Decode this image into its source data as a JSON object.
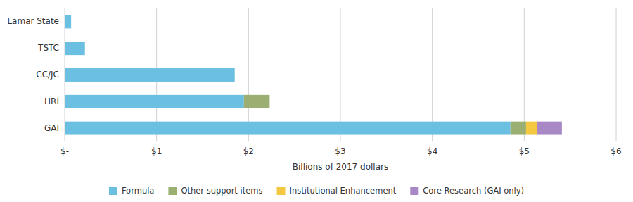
{
  "chart_data": {
    "type": "bar",
    "orientation": "horizontal",
    "stacked": true,
    "categories": [
      "GAI",
      "HRI",
      "CC/JC",
      "TSTC",
      "Lamar State"
    ],
    "series": [
      {
        "name": "Formula",
        "color": "#6BBFE0",
        "values": [
          4.85,
          1.95,
          1.85,
          0.22,
          0.07
        ]
      },
      {
        "name": "Other support items",
        "color": "#9BAF72",
        "values": [
          0.17,
          0.28,
          0.0,
          0.0,
          0.0
        ]
      },
      {
        "name": "Institutional Enhancement",
        "color": "#F5C842",
        "values": [
          0.12,
          0.0,
          0.0,
          0.0,
          0.0
        ]
      },
      {
        "name": "Core Research (GAI only)",
        "color": "#A989C5",
        "values": [
          0.27,
          0.0,
          0.0,
          0.0,
          0.0
        ]
      }
    ],
    "xlim": [
      0,
      6
    ],
    "xticks": [
      {
        "value": 0,
        "label": "$-"
      },
      {
        "value": 1,
        "label": "$1"
      },
      {
        "value": 2,
        "label": "$2"
      },
      {
        "value": 3,
        "label": "$3"
      },
      {
        "value": 4,
        "label": "$4"
      },
      {
        "value": 5,
        "label": "$5"
      },
      {
        "value": 6,
        "label": "$6"
      }
    ],
    "xlabel": "Billions of 2017 dollars",
    "grid": true,
    "legend": "bottom"
  }
}
